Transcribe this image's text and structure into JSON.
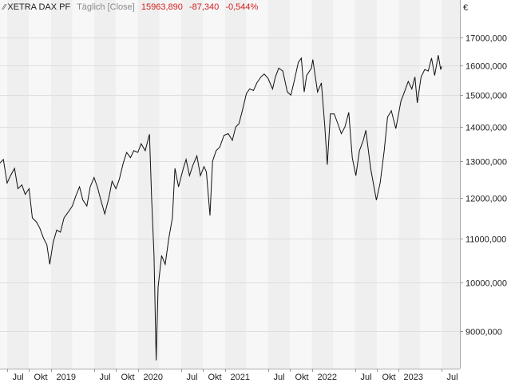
{
  "header": {
    "symbol": "XETRA DAX PF",
    "period": "Täglich [Close]",
    "last": "15963,890",
    "change": "-87,340",
    "change_pct": "-0,544%",
    "icon": "line-chart-icon"
  },
  "chart_data": {
    "type": "line",
    "y_scale": "log",
    "currency": "€",
    "ylim": [
      8300,
      17800
    ],
    "y_ticks": [
      9000,
      10000,
      11000,
      12000,
      13000,
      14000,
      15000,
      16000,
      17000
    ],
    "y_tick_labels": [
      "9000,000",
      "10000,000",
      "11000,000",
      "12000,000",
      "13000,000",
      "14000,000",
      "15000,000",
      "16000,000",
      "17000,000"
    ],
    "x_range": [
      "2018-06-01",
      "2023-09-15"
    ],
    "x_ticks": [
      {
        "date": "2018-07-01",
        "label": "Jul"
      },
      {
        "date": "2018-10-01",
        "label": "Okt"
      },
      {
        "date": "2019-01-01",
        "label": "2019"
      },
      {
        "date": "2019-07-01",
        "label": "Jul"
      },
      {
        "date": "2019-10-01",
        "label": "Okt"
      },
      {
        "date": "2020-01-01",
        "label": "2020"
      },
      {
        "date": "2020-07-01",
        "label": "Jul"
      },
      {
        "date": "2020-10-01",
        "label": "Okt"
      },
      {
        "date": "2021-01-01",
        "label": "2021"
      },
      {
        "date": "2021-07-01",
        "label": "Jul"
      },
      {
        "date": "2021-10-01",
        "label": "Okt"
      },
      {
        "date": "2022-01-01",
        "label": "2022"
      },
      {
        "date": "2022-07-01",
        "label": "Jul"
      },
      {
        "date": "2022-10-01",
        "label": "Okt"
      },
      {
        "date": "2023-01-01",
        "label": "2023"
      },
      {
        "date": "2023-07-01",
        "label": "Jul"
      }
    ],
    "grid": true,
    "series": [
      {
        "color": "#111111",
        "points": [
          [
            "2018-06-01",
            12950
          ],
          [
            "2018-06-15",
            13050
          ],
          [
            "2018-07-01",
            12400
          ],
          [
            "2018-07-15",
            12600
          ],
          [
            "2018-08-01",
            12800
          ],
          [
            "2018-08-15",
            12250
          ],
          [
            "2018-09-01",
            12350
          ],
          [
            "2018-09-15",
            12100
          ],
          [
            "2018-10-01",
            12250
          ],
          [
            "2018-10-15",
            11500
          ],
          [
            "2018-11-01",
            11400
          ],
          [
            "2018-11-15",
            11250
          ],
          [
            "2018-12-01",
            11000
          ],
          [
            "2018-12-15",
            10850
          ],
          [
            "2018-12-27",
            10400
          ],
          [
            "2019-01-10",
            10900
          ],
          [
            "2019-01-25",
            11200
          ],
          [
            "2019-02-10",
            11150
          ],
          [
            "2019-02-25",
            11500
          ],
          [
            "2019-03-15",
            11650
          ],
          [
            "2019-04-01",
            11800
          ],
          [
            "2019-04-15",
            12050
          ],
          [
            "2019-05-01",
            12300
          ],
          [
            "2019-05-15",
            11950
          ],
          [
            "2019-06-01",
            11800
          ],
          [
            "2019-06-15",
            12300
          ],
          [
            "2019-07-01",
            12550
          ],
          [
            "2019-07-15",
            12300
          ],
          [
            "2019-08-01",
            11900
          ],
          [
            "2019-08-15",
            11600
          ],
          [
            "2019-09-01",
            12000
          ],
          [
            "2019-09-15",
            12450
          ],
          [
            "2019-10-01",
            12250
          ],
          [
            "2019-10-15",
            12500
          ],
          [
            "2019-11-01",
            12950
          ],
          [
            "2019-11-15",
            13250
          ],
          [
            "2019-12-01",
            13100
          ],
          [
            "2019-12-15",
            13300
          ],
          [
            "2020-01-01",
            13250
          ],
          [
            "2020-01-15",
            13500
          ],
          [
            "2020-02-01",
            13300
          ],
          [
            "2020-02-19",
            13780
          ],
          [
            "2020-02-28",
            12000
          ],
          [
            "2020-03-09",
            10600
          ],
          [
            "2020-03-18",
            8450
          ],
          [
            "2020-03-26",
            9900
          ],
          [
            "2020-04-10",
            10600
          ],
          [
            "2020-04-25",
            10400
          ],
          [
            "2020-05-10",
            11000
          ],
          [
            "2020-05-25",
            11500
          ],
          [
            "2020-06-05",
            12800
          ],
          [
            "2020-06-20",
            12300
          ],
          [
            "2020-07-10",
            12800
          ],
          [
            "2020-07-22",
            13050
          ],
          [
            "2020-08-05",
            12600
          ],
          [
            "2020-08-20",
            12900
          ],
          [
            "2020-09-05",
            13150
          ],
          [
            "2020-09-20",
            12600
          ],
          [
            "2020-10-05",
            12850
          ],
          [
            "2020-10-15",
            12700
          ],
          [
            "2020-10-30",
            11560
          ],
          [
            "2020-11-10",
            13000
          ],
          [
            "2020-11-25",
            13300
          ],
          [
            "2020-12-10",
            13400
          ],
          [
            "2020-12-28",
            13750
          ],
          [
            "2021-01-15",
            13800
          ],
          [
            "2021-02-01",
            13600
          ],
          [
            "2021-02-15",
            14000
          ],
          [
            "2021-03-01",
            14100
          ],
          [
            "2021-03-15",
            14500
          ],
          [
            "2021-04-01",
            15050
          ],
          [
            "2021-04-15",
            15200
          ],
          [
            "2021-05-01",
            15150
          ],
          [
            "2021-05-15",
            15400
          ],
          [
            "2021-06-01",
            15600
          ],
          [
            "2021-06-15",
            15700
          ],
          [
            "2021-07-01",
            15550
          ],
          [
            "2021-07-20",
            15200
          ],
          [
            "2021-08-01",
            15600
          ],
          [
            "2021-08-15",
            15900
          ],
          [
            "2021-09-01",
            15800
          ],
          [
            "2021-09-20",
            15100
          ],
          [
            "2021-10-05",
            15000
          ],
          [
            "2021-10-20",
            15500
          ],
          [
            "2021-11-05",
            16100
          ],
          [
            "2021-11-18",
            16250
          ],
          [
            "2021-11-30",
            15100
          ],
          [
            "2021-12-10",
            15650
          ],
          [
            "2021-12-30",
            15900
          ],
          [
            "2022-01-05",
            16200
          ],
          [
            "2022-01-25",
            15100
          ],
          [
            "2022-02-10",
            15400
          ],
          [
            "2022-02-24",
            14050
          ],
          [
            "2022-03-07",
            12900
          ],
          [
            "2022-03-20",
            14400
          ],
          [
            "2022-04-05",
            14400
          ],
          [
            "2022-04-20",
            14100
          ],
          [
            "2022-05-05",
            13800
          ],
          [
            "2022-05-20",
            14000
          ],
          [
            "2022-06-05",
            14450
          ],
          [
            "2022-06-20",
            13100
          ],
          [
            "2022-07-05",
            12600
          ],
          [
            "2022-07-20",
            13300
          ],
          [
            "2022-08-05",
            13600
          ],
          [
            "2022-08-16",
            13900
          ],
          [
            "2022-09-05",
            12800
          ],
          [
            "2022-09-29",
            11950
          ],
          [
            "2022-10-15",
            12400
          ],
          [
            "2022-11-01",
            13300
          ],
          [
            "2022-11-15",
            14300
          ],
          [
            "2022-12-01",
            14500
          ],
          [
            "2022-12-20",
            13950
          ],
          [
            "2023-01-10",
            14800
          ],
          [
            "2023-01-25",
            15100
          ],
          [
            "2023-02-10",
            15450
          ],
          [
            "2023-02-25",
            15200
          ],
          [
            "2023-03-10",
            15600
          ],
          [
            "2023-03-20",
            14750
          ],
          [
            "2023-04-05",
            15600
          ],
          [
            "2023-04-20",
            15850
          ],
          [
            "2023-05-05",
            15800
          ],
          [
            "2023-05-19",
            16250
          ],
          [
            "2023-06-01",
            15650
          ],
          [
            "2023-06-16",
            16350
          ],
          [
            "2023-06-26",
            15850
          ],
          [
            "2023-07-01",
            15964
          ]
        ]
      }
    ]
  }
}
